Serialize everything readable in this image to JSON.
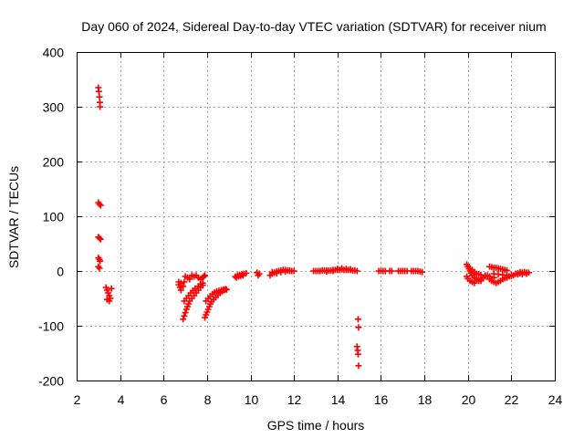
{
  "chart_data": {
    "type": "scatter",
    "title": "Day 060 of 2024, Sidereal Day-to-day VTEC variation (SDTVAR) for receiver nium",
    "xlabel": "GPS time / hours",
    "ylabel": "SDTVAR / TECUs",
    "xlim": [
      2,
      24
    ],
    "ylim": [
      -200,
      400
    ],
    "xticks": [
      2,
      4,
      6,
      8,
      10,
      12,
      14,
      16,
      18,
      20,
      22,
      24
    ],
    "yticks": [
      -200,
      -100,
      0,
      100,
      200,
      300,
      400
    ],
    "grid": true,
    "marker": "+",
    "color": "#ff0000",
    "series": [
      {
        "name": "SDTVAR",
        "points": [
          [
            3.0,
            335
          ],
          [
            3.02,
            328
          ],
          [
            3.05,
            318
          ],
          [
            3.07,
            308
          ],
          [
            3.08,
            300
          ],
          [
            3.0,
            125
          ],
          [
            3.05,
            122
          ],
          [
            3.1,
            120
          ],
          [
            3.0,
            62
          ],
          [
            3.05,
            60
          ],
          [
            3.1,
            58
          ],
          [
            3.0,
            24
          ],
          [
            3.05,
            21
          ],
          [
            3.08,
            18
          ],
          [
            3.0,
            8
          ],
          [
            3.05,
            5
          ],
          [
            3.35,
            -30
          ],
          [
            3.4,
            -35
          ],
          [
            3.45,
            -40
          ],
          [
            3.5,
            -45
          ],
          [
            3.55,
            -50
          ],
          [
            3.6,
            -32
          ],
          [
            3.4,
            -52
          ],
          [
            3.5,
            -55
          ],
          [
            6.7,
            -20
          ],
          [
            6.7,
            -25
          ],
          [
            6.75,
            -30
          ],
          [
            6.8,
            -35
          ],
          [
            6.9,
            -28
          ],
          [
            6.8,
            -22
          ],
          [
            6.95,
            -20
          ],
          [
            7.0,
            -10
          ],
          [
            7.1,
            -12
          ],
          [
            7.2,
            -15
          ],
          [
            7.3,
            -8
          ],
          [
            7.4,
            -10
          ],
          [
            7.5,
            -8
          ],
          [
            7.6,
            -12
          ],
          [
            7.7,
            -15
          ],
          [
            6.9,
            -88
          ],
          [
            6.95,
            -82
          ],
          [
            7.0,
            -76
          ],
          [
            7.05,
            -70
          ],
          [
            7.1,
            -65
          ],
          [
            7.15,
            -60
          ],
          [
            7.2,
            -55
          ],
          [
            7.3,
            -50
          ],
          [
            7.4,
            -45
          ],
          [
            7.5,
            -40
          ],
          [
            7.6,
            -35
          ],
          [
            7.7,
            -30
          ],
          [
            7.8,
            -26
          ],
          [
            6.95,
            -55
          ],
          [
            7.05,
            -50
          ],
          [
            7.15,
            -45
          ],
          [
            7.25,
            -40
          ],
          [
            7.35,
            -36
          ],
          [
            7.45,
            -32
          ],
          [
            7.6,
            -28
          ],
          [
            7.7,
            -24
          ],
          [
            7.8,
            -22
          ],
          [
            7.7,
            -15
          ],
          [
            7.8,
            -12
          ],
          [
            7.85,
            -10
          ],
          [
            7.9,
            -8
          ],
          [
            7.9,
            -85
          ],
          [
            7.95,
            -80
          ],
          [
            8.0,
            -75
          ],
          [
            8.05,
            -70
          ],
          [
            8.1,
            -65
          ],
          [
            8.15,
            -60
          ],
          [
            8.2,
            -56
          ],
          [
            8.3,
            -52
          ],
          [
            8.4,
            -48
          ],
          [
            8.5,
            -44
          ],
          [
            8.6,
            -40
          ],
          [
            8.7,
            -37
          ],
          [
            8.8,
            -35
          ],
          [
            8.9,
            -34
          ],
          [
            7.95,
            -55
          ],
          [
            8.05,
            -50
          ],
          [
            8.15,
            -46
          ],
          [
            8.25,
            -42
          ],
          [
            8.35,
            -39
          ],
          [
            8.45,
            -37
          ],
          [
            8.55,
            -36
          ],
          [
            8.65,
            -35
          ],
          [
            8.75,
            -34
          ],
          [
            8.85,
            -33
          ],
          [
            9.3,
            -10
          ],
          [
            9.4,
            -8
          ],
          [
            9.5,
            -7
          ],
          [
            9.6,
            -6
          ],
          [
            9.7,
            -5
          ],
          [
            9.8,
            -4
          ],
          [
            9.35,
            -12
          ],
          [
            9.45,
            -10
          ],
          [
            9.55,
            -9
          ],
          [
            9.65,
            -8
          ],
          [
            10.3,
            -3
          ],
          [
            10.35,
            -8
          ],
          [
            10.4,
            -5
          ],
          [
            10.9,
            -8
          ],
          [
            11.0,
            -5
          ],
          [
            11.1,
            -3
          ],
          [
            11.2,
            -1
          ],
          [
            11.3,
            0
          ],
          [
            11.4,
            1
          ],
          [
            11.5,
            2
          ],
          [
            11.6,
            2
          ],
          [
            11.7,
            1
          ],
          [
            11.8,
            1
          ],
          [
            11.9,
            0
          ],
          [
            12.0,
            0
          ],
          [
            11.0,
            -2
          ],
          [
            11.2,
            -4
          ],
          [
            11.4,
            -2
          ],
          [
            11.6,
            -1
          ],
          [
            11.8,
            0
          ],
          [
            12.9,
            0
          ],
          [
            13.0,
            0
          ],
          [
            13.1,
            0
          ],
          [
            13.2,
            0
          ],
          [
            13.3,
            1
          ],
          [
            13.4,
            1
          ],
          [
            13.5,
            1
          ],
          [
            13.6,
            1
          ],
          [
            13.7,
            1
          ],
          [
            13.8,
            2
          ],
          [
            13.9,
            2
          ],
          [
            14.0,
            2
          ],
          [
            14.1,
            2
          ],
          [
            14.2,
            3
          ],
          [
            14.3,
            2
          ],
          [
            14.4,
            2
          ],
          [
            14.5,
            2
          ],
          [
            14.6,
            2
          ],
          [
            14.7,
            1
          ],
          [
            14.8,
            1
          ],
          [
            14.9,
            0
          ],
          [
            13.5,
            -1
          ],
          [
            13.8,
            0
          ],
          [
            14.0,
            4
          ],
          [
            14.2,
            5
          ],
          [
            14.4,
            4
          ],
          [
            14.6,
            3
          ],
          [
            14.95,
            -88
          ],
          [
            14.97,
            -103
          ],
          [
            14.9,
            -138
          ],
          [
            14.93,
            -145
          ],
          [
            14.95,
            -152
          ],
          [
            14.97,
            -173
          ],
          [
            15.9,
            0
          ],
          [
            16.0,
            0
          ],
          [
            16.1,
            0
          ],
          [
            16.2,
            0
          ],
          [
            16.4,
            0
          ],
          [
            16.5,
            0
          ],
          [
            16.8,
            0
          ],
          [
            16.9,
            0
          ],
          [
            17.0,
            0
          ],
          [
            17.1,
            0
          ],
          [
            17.2,
            0
          ],
          [
            17.4,
            0
          ],
          [
            17.5,
            0
          ],
          [
            17.6,
            0
          ],
          [
            17.7,
            0
          ],
          [
            17.8,
            -1
          ],
          [
            17.9,
            -2
          ],
          [
            19.95,
            12
          ],
          [
            20.0,
            8
          ],
          [
            20.05,
            4
          ],
          [
            20.1,
            0
          ],
          [
            20.15,
            -4
          ],
          [
            20.2,
            -8
          ],
          [
            20.3,
            -12
          ],
          [
            20.4,
            -15
          ],
          [
            20.5,
            -17
          ],
          [
            20.6,
            -18
          ],
          [
            19.95,
            -10
          ],
          [
            20.0,
            -14
          ],
          [
            20.1,
            -18
          ],
          [
            20.2,
            -20
          ],
          [
            20.3,
            -22
          ],
          [
            20.5,
            -18
          ],
          [
            20.6,
            -15
          ],
          [
            20.7,
            -12
          ],
          [
            20.8,
            -10
          ],
          [
            20.9,
            -8
          ],
          [
            20.1,
            5
          ],
          [
            20.2,
            2
          ],
          [
            20.3,
            -2
          ],
          [
            20.4,
            -5
          ],
          [
            20.5,
            -6
          ],
          [
            20.6,
            -7
          ],
          [
            20.8,
            -8
          ],
          [
            21.0,
            -10
          ],
          [
            21.2,
            -12
          ],
          [
            21.0,
            -15
          ],
          [
            21.1,
            -18
          ],
          [
            21.2,
            -20
          ],
          [
            21.3,
            -22
          ],
          [
            21.4,
            -20
          ],
          [
            21.5,
            -18
          ],
          [
            21.6,
            -15
          ],
          [
            21.7,
            -13
          ],
          [
            21.8,
            -12
          ],
          [
            21.9,
            -10
          ],
          [
            22.0,
            -9
          ],
          [
            22.1,
            -8
          ],
          [
            21.0,
            8
          ],
          [
            21.1,
            7
          ],
          [
            21.2,
            6
          ],
          [
            21.3,
            6
          ],
          [
            21.4,
            5
          ],
          [
            21.5,
            4
          ],
          [
            21.6,
            3
          ],
          [
            21.7,
            2
          ],
          [
            21.8,
            1
          ],
          [
            21.2,
            -5
          ],
          [
            21.4,
            -6
          ],
          [
            21.6,
            -7
          ],
          [
            21.8,
            -8
          ],
          [
            22.0,
            -7
          ],
          [
            22.2,
            -5
          ],
          [
            22.3,
            -4
          ],
          [
            22.4,
            -4
          ],
          [
            22.5,
            -3
          ],
          [
            22.6,
            -3
          ],
          [
            22.7,
            -3
          ],
          [
            22.8,
            -3
          ],
          [
            22.3,
            -6
          ],
          [
            22.5,
            -6
          ],
          [
            22.7,
            -5
          ],
          [
            22.4,
            -2
          ],
          [
            22.6,
            -2
          ]
        ]
      }
    ]
  }
}
